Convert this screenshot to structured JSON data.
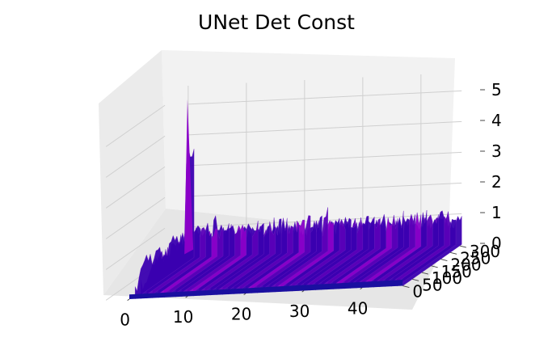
{
  "chart_data": {
    "type": "surface3d",
    "title": "UNet Det Const",
    "xlabel": "",
    "ylabel": "",
    "zlabel": "",
    "x_ticks": [
      "0",
      "10",
      "20",
      "30",
      "40"
    ],
    "y_ticks": [
      "0",
      "50",
      "100",
      "150",
      "200",
      "250",
      "300"
    ],
    "z_ticks": [
      "0",
      "1",
      "2",
      "3",
      "4",
      "5"
    ],
    "xlim": [
      0,
      47
    ],
    "ylim": [
      0,
      310
    ],
    "zlim": [
      0,
      5.6
    ],
    "grid": true,
    "colormap": [
      "#1a0fa0",
      "#3a00b0",
      "#5a00b8",
      "#8a00c8"
    ],
    "series": [
      {
        "description_values": "x = index (0-47), y = index (0-300), z = value",
        "peak": {
          "x": 0,
          "y": 300,
          "z": 5.2
        },
        "baseline_z": 0.9,
        "baseline_noise_max": 1.6,
        "front_edge_z": 0.0
      }
    ]
  },
  "colors": {
    "pane": "#f2f2f2",
    "grid": "#cfcfcf",
    "surface_dark": "#1a0fa0",
    "surface_light": "#8a00c8"
  }
}
